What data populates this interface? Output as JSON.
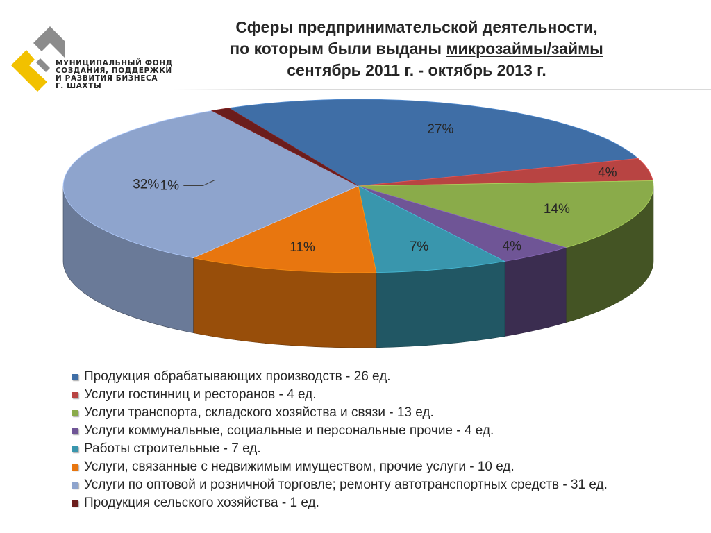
{
  "logo": {
    "lines": [
      "МУНИЦИПАЛЬНЫЙ ФОНД",
      "СОЗДАНИЯ, ПОДДЕРЖКИ",
      "И РАЗВИТИЯ БИЗНЕСА",
      "Г. ШАХТЫ"
    ],
    "icon": "logo-mark-icon",
    "colors": {
      "gray": "#8c8c8c",
      "yellow": "#f2c100"
    }
  },
  "title": {
    "line1": "Сферы предпринимательской деятельности,",
    "line2_prefix": "по которым были выданы ",
    "line2_underlined": "микрозаймы/займы",
    "line3": "сентябрь 2011 г. - октябрь 2013 г."
  },
  "chart_data": {
    "type": "pie",
    "style": "3d",
    "title": "Сферы предпринимательской деятельности, по которым были выданы микрозаймы/займы сентябрь 2011 г. - октябрь 2013 г.",
    "legend_position": "bottom",
    "slices": [
      {
        "label": "Продукция обрабатывающих производств - 26 ед.",
        "value": 26,
        "percent_label": "27%",
        "color": "#3f6ea6"
      },
      {
        "label": "Услуги гостинниц и ресторанов - 4 ед.",
        "value": 4,
        "percent_label": "4%",
        "color": "#b84442"
      },
      {
        "label": "Услуги транспорта, складского хозяйства и связи - 13 ед.",
        "value": 13,
        "percent_label": "14%",
        "color": "#8aab4a"
      },
      {
        "label": "Услуги коммунальные, социальные и персональные прочие - 4 ед.",
        "value": 4,
        "percent_label": "4%",
        "color": "#6f5596"
      },
      {
        "label": "Работы строительные - 7 ед.",
        "value": 7,
        "percent_label": "7%",
        "color": "#3996ad"
      },
      {
        "label": "Услуги, связанные с недвижимым имуществом, прочие услуги - 10 ед.",
        "value": 10,
        "percent_label": "11%",
        "color": "#e8760f"
      },
      {
        "label": "Услуги по оптовой и розничной торговле; ремонту автотранспортных средств - 31 ед.",
        "value": 31,
        "percent_label": "32%",
        "color": "#8ea4cd"
      },
      {
        "label": "Продукция сельского хозяйства - 1 ед.",
        "value": 1,
        "percent_label": "1%",
        "color": "#6b1d1c"
      }
    ]
  }
}
